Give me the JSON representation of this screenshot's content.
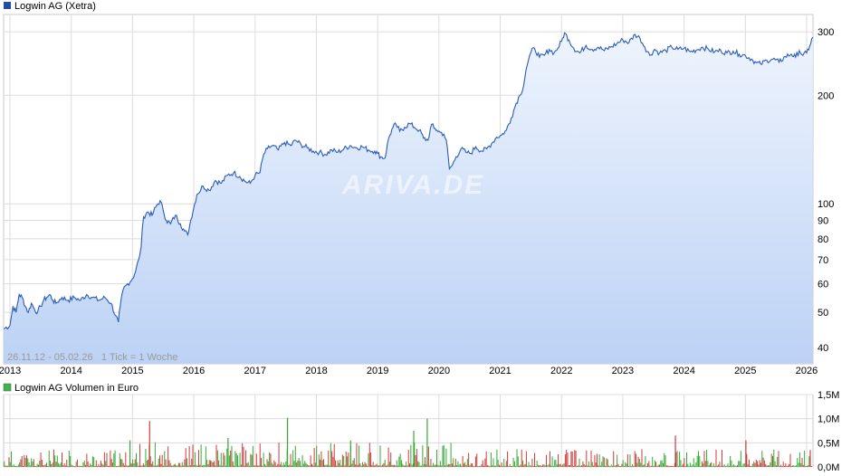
{
  "chart_data": [
    {
      "type": "area",
      "title": "Logwin AG (Xetra)",
      "legend_color": "#1f4fa3",
      "line_color": "#2a5cb8",
      "fill_top": "#eef4fd",
      "fill_bottom": "#bcd2f5",
      "scale": "log",
      "ylim": [
        36,
        335
      ],
      "y_ticks": [
        40,
        50,
        60,
        70,
        80,
        90,
        100,
        200,
        300
      ],
      "y_tick_labels": [
        "40",
        "50",
        "60",
        "70",
        "80",
        "90",
        "100",
        "200",
        "300"
      ],
      "x_ticks": [
        "2013",
        "2014",
        "2015",
        "2016",
        "2017",
        "2018",
        "2019",
        "2020",
        "2021",
        "2022",
        "2023",
        "2024",
        "2025",
        "2026"
      ],
      "range_note": "26.11.12 - 05.02.26",
      "tick_note": "1 Tick = 1 Woche",
      "watermark": "ARIVA.DE",
      "grid": true,
      "series": [
        {
          "name": "Logwin AG",
          "points": [
            [
              2012.9,
              45
            ],
            [
              2013.0,
              46
            ],
            [
              2013.05,
              52
            ],
            [
              2013.1,
              50
            ],
            [
              2013.15,
              56
            ],
            [
              2013.2,
              55
            ],
            [
              2013.25,
              52
            ],
            [
              2013.3,
              50
            ],
            [
              2013.35,
              53
            ],
            [
              2013.4,
              51
            ],
            [
              2013.45,
              50
            ],
            [
              2013.5,
              52
            ],
            [
              2013.55,
              54
            ],
            [
              2013.6,
              55
            ],
            [
              2013.65,
              56
            ],
            [
              2013.7,
              54
            ],
            [
              2013.75,
              53
            ],
            [
              2013.85,
              55
            ],
            [
              2013.95,
              54
            ],
            [
              2014.05,
              55
            ],
            [
              2014.15,
              54
            ],
            [
              2014.25,
              56
            ],
            [
              2014.35,
              55
            ],
            [
              2014.45,
              54
            ],
            [
              2014.55,
              55
            ],
            [
              2014.65,
              53
            ],
            [
              2014.72,
              49
            ],
            [
              2014.77,
              47
            ],
            [
              2014.8,
              52
            ],
            [
              2014.85,
              58
            ],
            [
              2014.92,
              60
            ],
            [
              2015.0,
              62
            ],
            [
              2015.05,
              65
            ],
            [
              2015.1,
              70
            ],
            [
              2015.14,
              76
            ],
            [
              2015.18,
              92
            ],
            [
              2015.25,
              95
            ],
            [
              2015.32,
              93
            ],
            [
              2015.38,
              98
            ],
            [
              2015.45,
              102
            ],
            [
              2015.5,
              96
            ],
            [
              2015.55,
              90
            ],
            [
              2015.62,
              88
            ],
            [
              2015.7,
              93
            ],
            [
              2015.78,
              88
            ],
            [
              2015.85,
              84
            ],
            [
              2015.9,
              82
            ],
            [
              2015.95,
              90
            ],
            [
              2016.05,
              106
            ],
            [
              2016.15,
              112
            ],
            [
              2016.25,
              109
            ],
            [
              2016.35,
              116
            ],
            [
              2016.45,
              114
            ],
            [
              2016.55,
              120
            ],
            [
              2016.65,
              122
            ],
            [
              2016.75,
              119
            ],
            [
              2016.85,
              115
            ],
            [
              2016.92,
              114
            ],
            [
              2017.0,
              120
            ],
            [
              2017.08,
              122
            ],
            [
              2017.14,
              137
            ],
            [
              2017.2,
              142
            ],
            [
              2017.28,
              145
            ],
            [
              2017.38,
              141
            ],
            [
              2017.48,
              148
            ],
            [
              2017.58,
              145
            ],
            [
              2017.66,
              150
            ],
            [
              2017.75,
              146
            ],
            [
              2017.85,
              143
            ],
            [
              2017.95,
              140
            ],
            [
              2018.05,
              139
            ],
            [
              2018.15,
              137
            ],
            [
              2018.25,
              141
            ],
            [
              2018.35,
              139
            ],
            [
              2018.45,
              142
            ],
            [
              2018.55,
              145
            ],
            [
              2018.65,
              143
            ],
            [
              2018.75,
              144
            ],
            [
              2018.85,
              141
            ],
            [
              2018.95,
              140
            ],
            [
              2019.0,
              138
            ],
            [
              2019.05,
              135
            ],
            [
              2019.12,
              134
            ],
            [
              2019.18,
              152
            ],
            [
              2019.25,
              163
            ],
            [
              2019.3,
              166
            ],
            [
              2019.36,
              159
            ],
            [
              2019.44,
              163
            ],
            [
              2019.52,
              167
            ],
            [
              2019.6,
              163
            ],
            [
              2019.68,
              160
            ],
            [
              2019.75,
              152
            ],
            [
              2019.82,
              150
            ],
            [
              2019.88,
              166
            ],
            [
              2019.92,
              162
            ],
            [
              2019.97,
              160
            ],
            [
              2020.02,
              158
            ],
            [
              2020.08,
              156
            ],
            [
              2020.12,
              150
            ],
            [
              2020.17,
              125
            ],
            [
              2020.22,
              128
            ],
            [
              2020.28,
              135
            ],
            [
              2020.36,
              142
            ],
            [
              2020.44,
              139
            ],
            [
              2020.52,
              138
            ],
            [
              2020.6,
              144
            ],
            [
              2020.7,
              140
            ],
            [
              2020.78,
              142
            ],
            [
              2020.86,
              147
            ],
            [
              2020.94,
              153
            ],
            [
              2021.02,
              155
            ],
            [
              2021.1,
              160
            ],
            [
              2021.18,
              173
            ],
            [
              2021.26,
              190
            ],
            [
              2021.32,
              200
            ],
            [
              2021.38,
              212
            ],
            [
              2021.42,
              235
            ],
            [
              2021.46,
              250
            ],
            [
              2021.5,
              263
            ],
            [
              2021.56,
              270
            ],
            [
              2021.64,
              255
            ],
            [
              2021.72,
              258
            ],
            [
              2021.8,
              268
            ],
            [
              2021.88,
              262
            ],
            [
              2021.94,
              270
            ],
            [
              2022.0,
              282
            ],
            [
              2022.05,
              298
            ],
            [
              2022.12,
              285
            ],
            [
              2022.2,
              270
            ],
            [
              2022.3,
              262
            ],
            [
              2022.4,
              275
            ],
            [
              2022.5,
              268
            ],
            [
              2022.6,
              272
            ],
            [
              2022.7,
              266
            ],
            [
              2022.8,
              272
            ],
            [
              2022.9,
              278
            ],
            [
              2023.0,
              285
            ],
            [
              2023.1,
              280
            ],
            [
              2023.2,
              295
            ],
            [
              2023.28,
              288
            ],
            [
              2023.36,
              272
            ],
            [
              2023.44,
              258
            ],
            [
              2023.52,
              268
            ],
            [
              2023.6,
              262
            ],
            [
              2023.7,
              266
            ],
            [
              2023.8,
              272
            ],
            [
              2023.9,
              268
            ],
            [
              2024.0,
              270
            ],
            [
              2024.1,
              264
            ],
            [
              2024.2,
              267
            ],
            [
              2024.3,
              272
            ],
            [
              2024.4,
              268
            ],
            [
              2024.5,
              264
            ],
            [
              2024.6,
              266
            ],
            [
              2024.7,
              262
            ],
            [
              2024.8,
              265
            ],
            [
              2024.9,
              260
            ],
            [
              2025.0,
              258
            ],
            [
              2025.1,
              252
            ],
            [
              2025.18,
              246
            ],
            [
              2025.25,
              244
            ],
            [
              2025.35,
              250
            ],
            [
              2025.45,
              252
            ],
            [
              2025.55,
              247
            ],
            [
              2025.65,
              256
            ],
            [
              2025.75,
              260
            ],
            [
              2025.82,
              255
            ],
            [
              2025.88,
              266
            ],
            [
              2025.94,
              258
            ],
            [
              2026.0,
              262
            ],
            [
              2026.05,
              274
            ],
            [
              2026.1,
              290
            ]
          ]
        }
      ]
    },
    {
      "type": "bar",
      "title": "Logwin AG Volumen in Euro",
      "legend_color": "#3db54a",
      "up_color": "#33aa33",
      "down_color": "#d23a3a",
      "ylim": [
        0,
        1.5
      ],
      "y_ticks": [
        0,
        0.5,
        1.0,
        1.5
      ],
      "y_tick_labels": [
        "0,0M",
        "0,5M",
        "1,0M",
        "1,5M"
      ],
      "unit": "M",
      "x_range": [
        2012.9,
        2026.1
      ],
      "peaks": [
        {
          "x": 2015.27,
          "value": 0.95,
          "up": false
        },
        {
          "x": 2017.52,
          "value": 1.02,
          "up": true
        },
        {
          "x": 2019.8,
          "value": 1.0,
          "up": true
        },
        {
          "x": 2019.58,
          "value": 0.75,
          "up": true
        },
        {
          "x": 2014.95,
          "value": 0.55,
          "up": true
        },
        {
          "x": 2016.55,
          "value": 0.6,
          "up": true
        },
        {
          "x": 2018.55,
          "value": 0.55,
          "up": true
        },
        {
          "x": 2023.85,
          "value": 0.65,
          "up": false
        },
        {
          "x": 2025.0,
          "value": 0.55,
          "up": false
        },
        {
          "x": 2026.05,
          "value": 0.35,
          "up": false
        }
      ]
    }
  ]
}
